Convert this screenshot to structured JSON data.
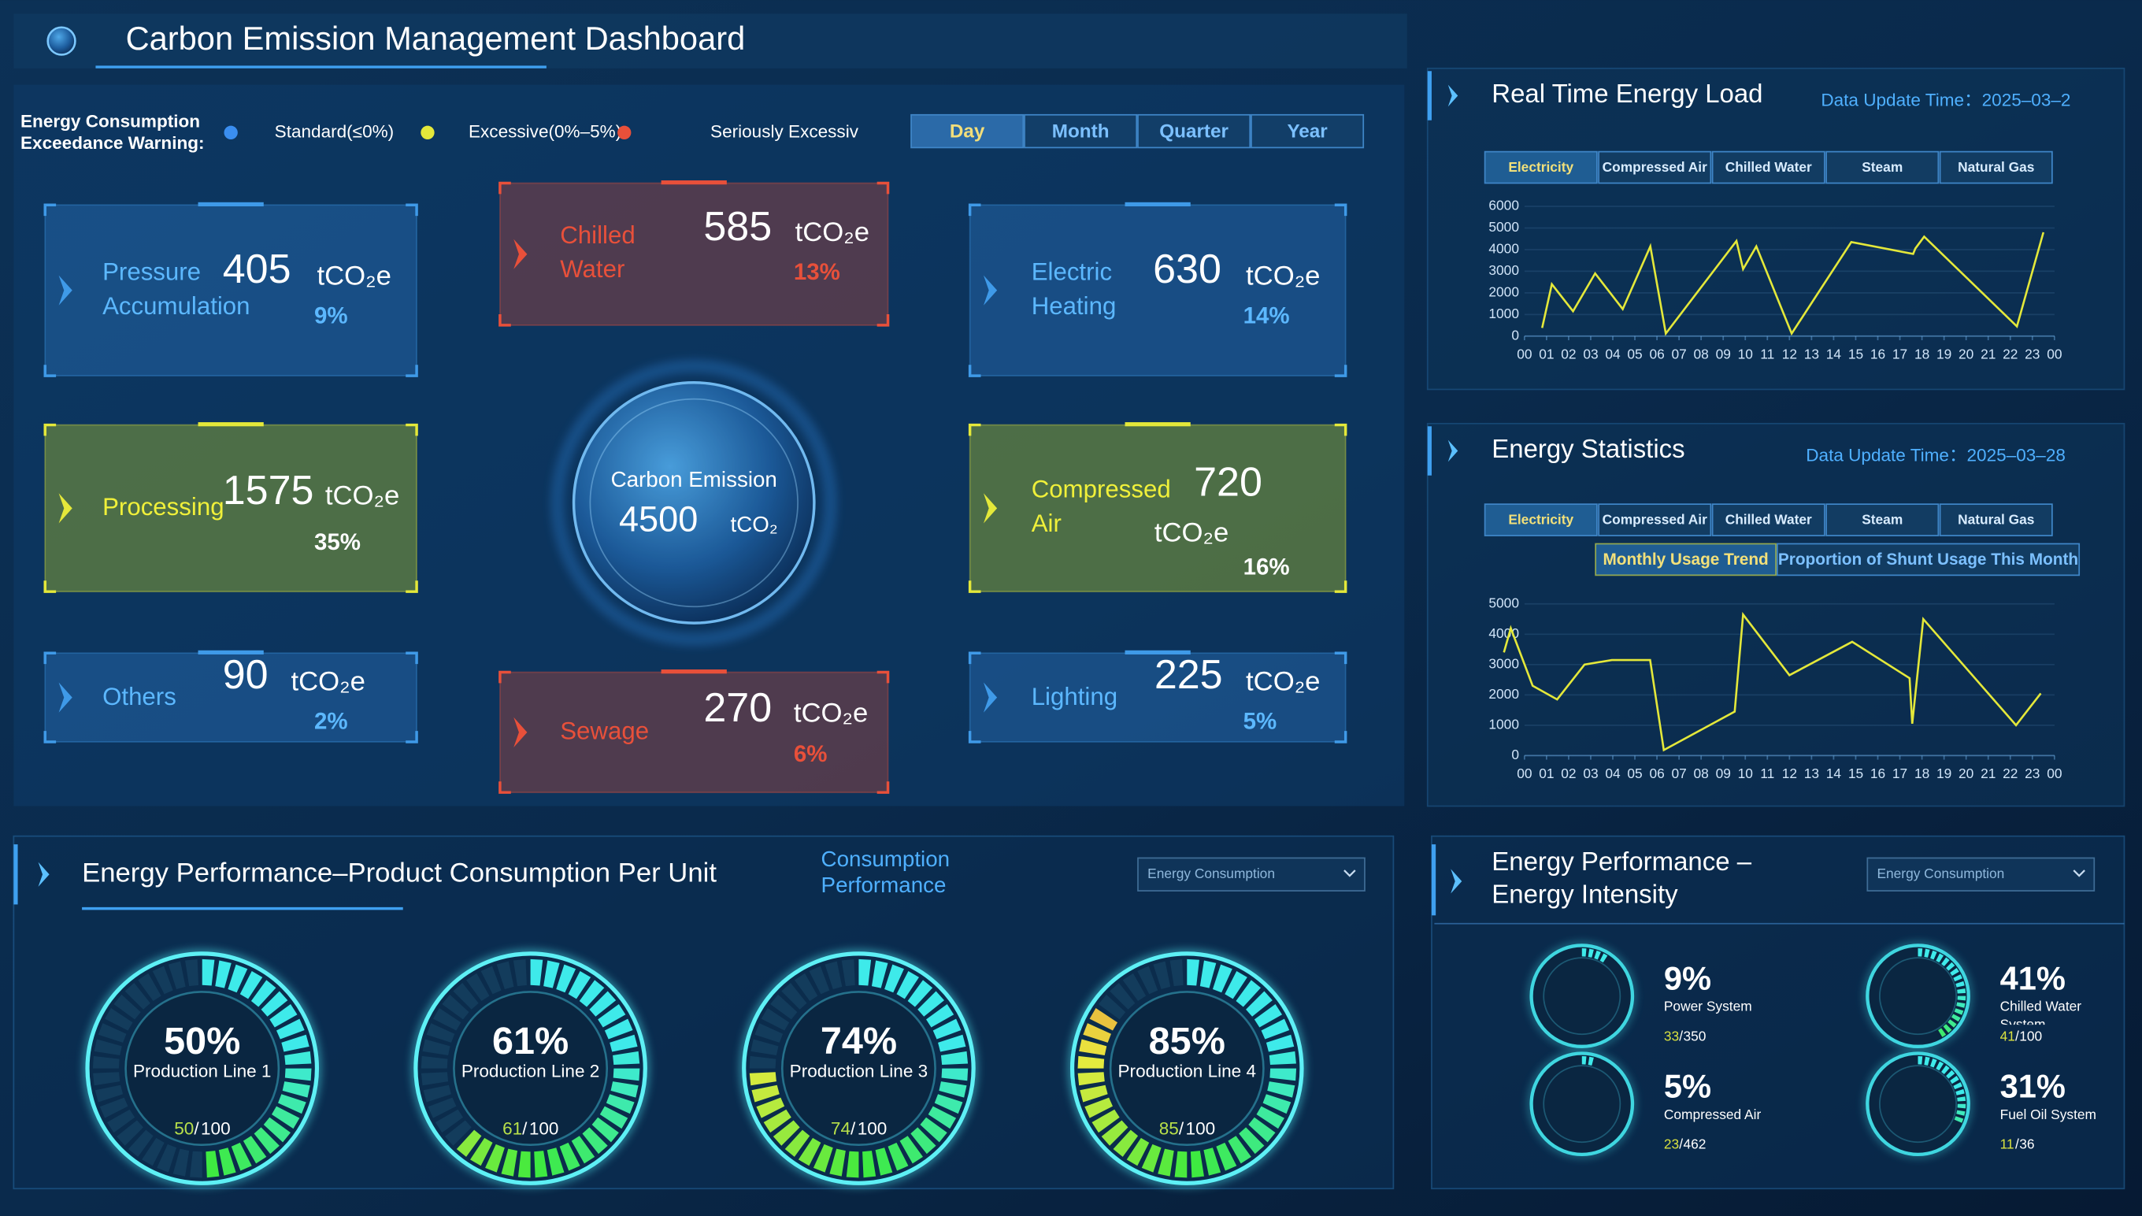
{
  "header": {
    "title": "Carbon Emission Management Dashboard"
  },
  "warning": {
    "label": "Energy Consumption Exceedance Warning:",
    "levels": [
      {
        "name": "Standard(≤0%)",
        "color": "#3a8ef0"
      },
      {
        "name": "Excessive(0%–5%)",
        "color": "#e4e83a"
      },
      {
        "name": "Seriously Excessiv",
        "color": "#e8503a"
      }
    ]
  },
  "periods": {
    "options": [
      "Day",
      "Month",
      "Quarter",
      "Year"
    ],
    "active": 0
  },
  "emission": {
    "label": "Carbon Emission",
    "value": 4500,
    "unit": "tCO₂",
    "card_unit": "tCO₂e",
    "cards": [
      {
        "label": "Pressure Accumulation",
        "value": 405,
        "share": "9%",
        "level": 0
      },
      {
        "label": "Chilled Water",
        "value": 585,
        "share": "13%",
        "level": 2
      },
      {
        "label": "Electric Heating",
        "value": 630,
        "share": "14%",
        "level": 0
      },
      {
        "label": "Processing",
        "value": 1575,
        "share": "35%",
        "level": 1
      },
      {
        "label": "Compressed Air",
        "value": 720,
        "share": "16%",
        "level": 1
      },
      {
        "label": "Others",
        "value": 90,
        "share": "2%",
        "level": 0
      },
      {
        "label": "Sewage",
        "value": 270,
        "share": "6%",
        "level": 2
      },
      {
        "label": "Lighting",
        "value": 225,
        "share": "5%",
        "level": 0
      }
    ]
  },
  "load": {
    "title": "Real Time Energy Load",
    "update": "Data Update Time：2025–03–2",
    "tabs": [
      "Electricity",
      "Compressed Air",
      "Chilled Water",
      "Steam",
      "Natural Gas"
    ],
    "active_tab": 0,
    "chart": {
      "type": "line",
      "color": "#e4e83a",
      "x": [
        0.8,
        1.24,
        2.2,
        3.2,
        4.45,
        5.7,
        6.4,
        9.6,
        9.9,
        10.5,
        12.1,
        14.8,
        17.6,
        17.7,
        18.1,
        22.3,
        23.5
      ],
      "values": [
        380,
        2400,
        1150,
        2900,
        1250,
        4150,
        120,
        4400,
        3100,
        4150,
        120,
        4350,
        3800,
        4050,
        4600,
        450,
        4800
      ],
      "xlim": [
        -1.5,
        24.5
      ],
      "xticks": [
        {
          "value": 0,
          "label": "00"
        },
        {
          "value": 1,
          "label": "01"
        },
        {
          "value": 2,
          "label": "02"
        },
        {
          "value": 3,
          "label": "03"
        },
        {
          "value": 4,
          "label": "04"
        },
        {
          "value": 5,
          "label": "05"
        },
        {
          "value": 6,
          "label": "06"
        },
        {
          "value": 7,
          "label": "07"
        },
        {
          "value": 8,
          "label": "08"
        },
        {
          "value": 9,
          "label": "09"
        },
        {
          "value": 10,
          "label": "10"
        },
        {
          "value": 11,
          "label": "11"
        },
        {
          "value": 12,
          "label": "12"
        },
        {
          "value": 13,
          "label": "13"
        },
        {
          "value": 14,
          "label": "14"
        },
        {
          "value": 15,
          "label": "15"
        },
        {
          "value": 16,
          "label": "16"
        },
        {
          "value": 17,
          "label": "17"
        },
        {
          "value": 18,
          "label": "18"
        },
        {
          "value": 19,
          "label": "19"
        },
        {
          "value": 20,
          "label": "20"
        },
        {
          "value": 21,
          "label": "21"
        },
        {
          "value": 22,
          "label": "22"
        },
        {
          "value": 23,
          "label": "23"
        },
        {
          "value": 24,
          "label": "00"
        }
      ],
      "ylim": [
        0,
        6000
      ],
      "yticks": [
        0,
        1000,
        2000,
        3000,
        4000,
        5000,
        6000
      ],
      "grid": true
    }
  },
  "statistics": {
    "title": "Energy Statistics",
    "update": "Data Update Time：2025–03–28",
    "tabs": [
      "Electricity",
      "Compressed Air",
      "Chilled Water",
      "Steam",
      "Natural Gas"
    ],
    "active_tab": 0,
    "subtabs": [
      "Monthly Usage Trend",
      "Proportion of Shunt Usage This Month"
    ],
    "active_subtab": 0,
    "chart": {
      "type": "line",
      "color": "#e4e83a",
      "x": [
        -0.93,
        -0.62,
        0.37,
        1.48,
        2.72,
        3.96,
        5.69,
        6.31,
        9.52,
        9.9,
        12.0,
        14.84,
        17.44,
        17.56,
        18.06,
        22.26,
        23.38
      ],
      "values": [
        3400,
        4200,
        2300,
        1850,
        3000,
        3150,
        3150,
        180,
        1450,
        4650,
        2650,
        3750,
        2550,
        1050,
        4500,
        1000,
        2050
      ],
      "xlim": [
        -1.5,
        24.5
      ],
      "xticks": [
        {
          "value": 0,
          "label": "00"
        },
        {
          "value": 1,
          "label": "01"
        },
        {
          "value": 2,
          "label": "02"
        },
        {
          "value": 3,
          "label": "03"
        },
        {
          "value": 4,
          "label": "04"
        },
        {
          "value": 5,
          "label": "05"
        },
        {
          "value": 6,
          "label": "06"
        },
        {
          "value": 7,
          "label": "07"
        },
        {
          "value": 8,
          "label": "08"
        },
        {
          "value": 9,
          "label": "09"
        },
        {
          "value": 10,
          "label": "10"
        },
        {
          "value": 11,
          "label": "11"
        },
        {
          "value": 12,
          "label": "12"
        },
        {
          "value": 13,
          "label": "13"
        },
        {
          "value": 14,
          "label": "14"
        },
        {
          "value": 15,
          "label": "15"
        },
        {
          "value": 16,
          "label": "16"
        },
        {
          "value": 17,
          "label": "17"
        },
        {
          "value": 18,
          "label": "18"
        },
        {
          "value": 19,
          "label": "19"
        },
        {
          "value": 20,
          "label": "20"
        },
        {
          "value": 21,
          "label": "21"
        },
        {
          "value": 22,
          "label": "22"
        },
        {
          "value": 23,
          "label": "23"
        },
        {
          "value": 24,
          "label": "00"
        }
      ],
      "ylim": [
        0,
        5000
      ],
      "yticks": [
        0,
        1000,
        2000,
        3000,
        4000,
        5000
      ],
      "grid": true
    }
  },
  "consumption": {
    "title": "Energy Performance–Product Consumption Per Unit",
    "metric": "Consumption Performance",
    "dropdown": "Energy Consumption",
    "separator": "/",
    "gauges": [
      {
        "percent": "50%",
        "name": "Production Line 1",
        "value": 50,
        "max": 100
      },
      {
        "percent": "61%",
        "name": "Production Line 2",
        "value": 61,
        "max": 100
      },
      {
        "percent": "74%",
        "name": "Production Line 3",
        "value": 74,
        "max": 100
      },
      {
        "percent": "85%",
        "name": "Production Line 4",
        "value": 85,
        "max": 100
      }
    ]
  },
  "intensity": {
    "title": "Energy Performance – Energy Intensity",
    "dropdown": "Energy Consumption",
    "separator": "/",
    "items": [
      {
        "percent": "9%",
        "name": "Power System",
        "value": 33,
        "max": 350
      },
      {
        "percent": "41%",
        "name": "Chilled Water System",
        "value": 41,
        "max": 100
      },
      {
        "percent": "5%",
        "name": "Compressed Air",
        "value": 23,
        "max": 462
      },
      {
        "percent": "31%",
        "name": "Fuel Oil System",
        "value": 11,
        "max": 36
      }
    ]
  }
}
